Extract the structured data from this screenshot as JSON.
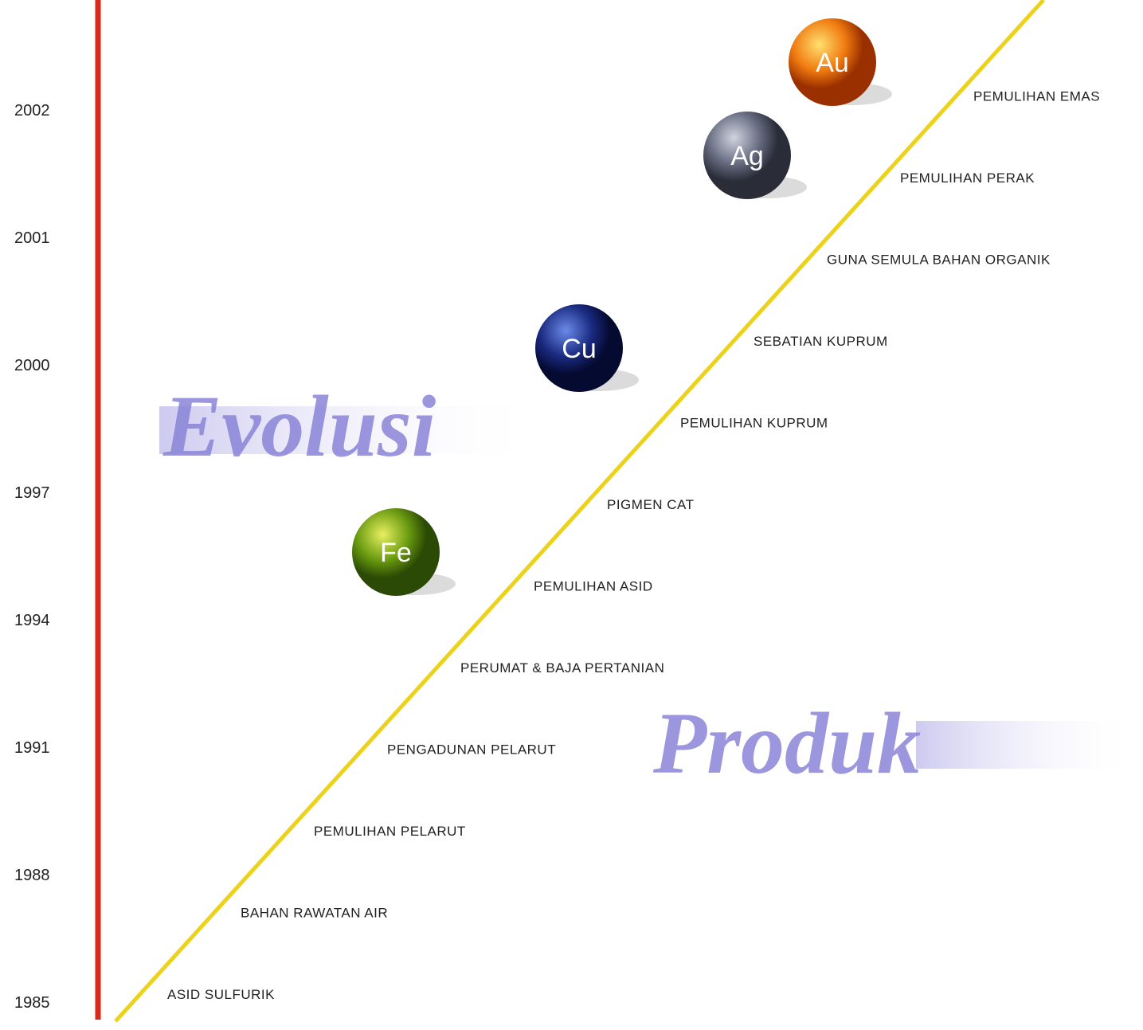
{
  "heading": {
    "word1": "Evolusi",
    "word2": "Produk"
  },
  "years": [
    "2002",
    "2001",
    "2000",
    "1997",
    "1994",
    "1991",
    "1988",
    "1985"
  ],
  "products": [
    "ASID SULFURIK",
    "BAHAN RAWATAN AIR",
    "PEMULIHAN PELARUT",
    "PENGADUNAN PELARUT",
    "PERUMAT & BAJA PERTANIAN",
    "PEMULIHAN ASID",
    "PIGMEN CAT",
    "PEMULIHAN KUPRUM",
    "SEBATIAN KUPRUM",
    "GUNA SEMULA BAHAN ORGANIK",
    "PEMULIHAN PERAK",
    "PEMULIHAN EMAS"
  ],
  "elements": [
    "Fe",
    "Cu",
    "Ag",
    "Au"
  ]
}
